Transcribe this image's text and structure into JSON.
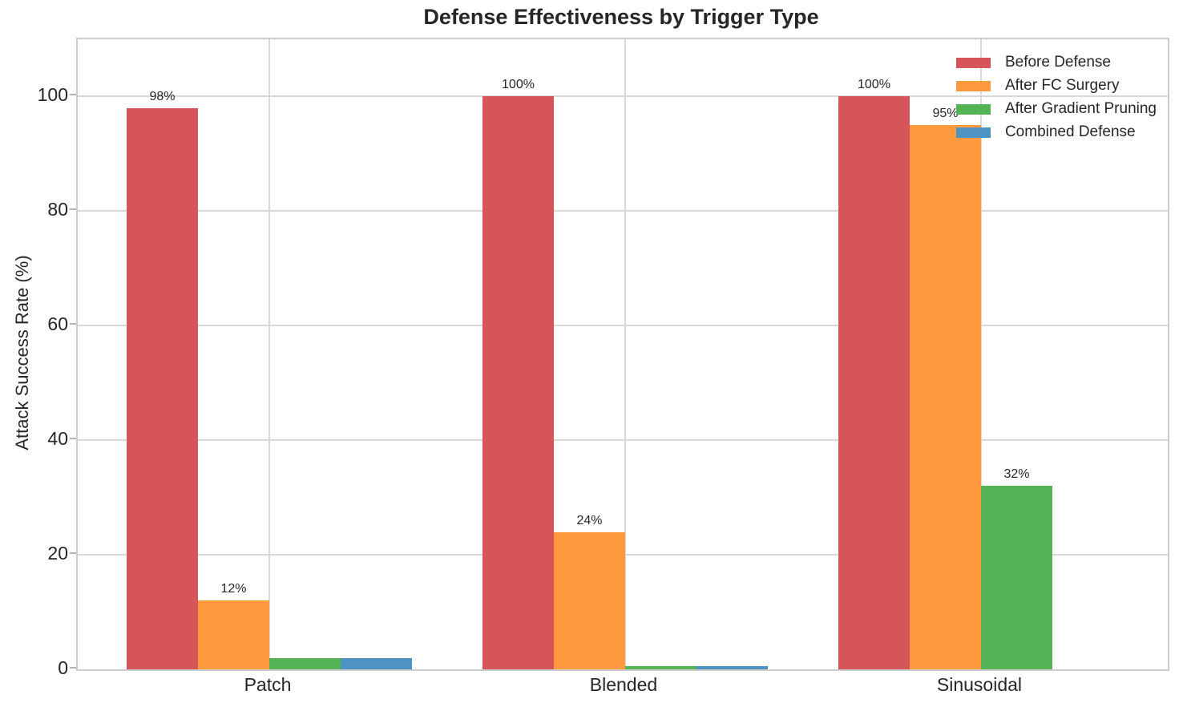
{
  "chart_data": {
    "type": "bar",
    "title": "Defense Effectiveness by Trigger Type",
    "xlabel": "",
    "ylabel": "Attack Success Rate (%)",
    "categories": [
      "Patch",
      "Blended",
      "Sinusoidal"
    ],
    "series": [
      {
        "name": "Before Defense",
        "color": "#d65558",
        "values": [
          98,
          100,
          100
        ],
        "bar_labels": [
          "98%",
          "100%",
          "100%"
        ]
      },
      {
        "name": "After FC Surgery",
        "color": "#ff9a3e",
        "values": [
          12,
          24,
          95
        ],
        "bar_labels": [
          "12%",
          "24%",
          "95%"
        ]
      },
      {
        "name": "After Gradient Pruning",
        "color": "#53b355",
        "values": [
          2,
          0.5,
          32
        ],
        "bar_labels": [
          "",
          "",
          "32%"
        ]
      },
      {
        "name": "Combined Defense",
        "color": "#4e93c4",
        "values": [
          2,
          0.5,
          0
        ],
        "bar_labels": [
          "",
          "",
          ""
        ]
      }
    ],
    "yticks": [
      0,
      20,
      40,
      60,
      80,
      100
    ],
    "ylim": [
      0,
      110
    ],
    "grid": true,
    "legend_position": "upper right"
  }
}
